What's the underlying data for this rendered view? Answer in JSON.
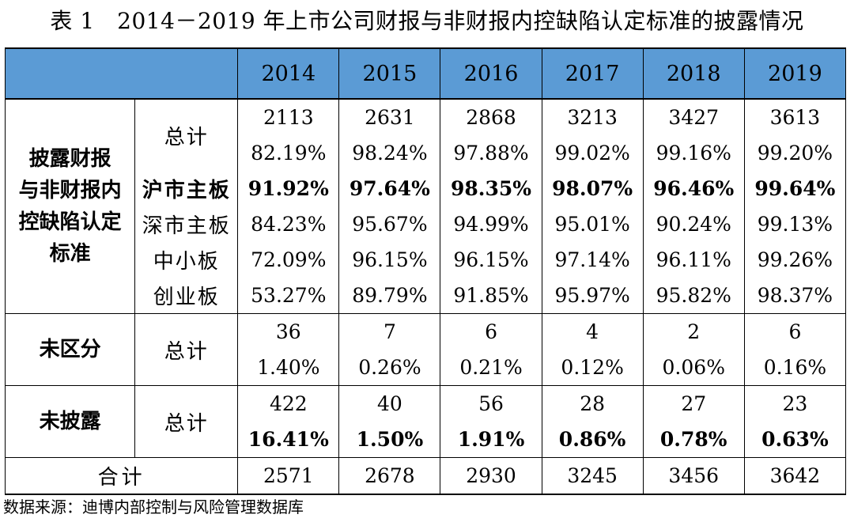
{
  "caption": "表 1　2014－2019 年上市公司财报与非财报内控缺陷认定标准的披露情况",
  "years": [
    "2014",
    "2015",
    "2016",
    "2017",
    "2018",
    "2019"
  ],
  "groups": {
    "disclosed": [
      "披露财报",
      "与非财报内",
      "控缺陷认定",
      "标准"
    ],
    "undistinguished": "未区分",
    "undisclosed": "未披露"
  },
  "labels": {
    "total": "总计",
    "sh_main": "沪市主板",
    "sz_main": "深市主板",
    "sme": "中小板",
    "gem": "创业板",
    "grand_total": "合计"
  },
  "rows": {
    "disclosed_count": [
      "2113",
      "2631",
      "2868",
      "3213",
      "3427",
      "3613"
    ],
    "disclosed_pct": [
      "82.19%",
      "98.24%",
      "97.88%",
      "99.02%",
      "99.16%",
      "99.20%"
    ],
    "sh_main": [
      "91.92%",
      "97.64%",
      "98.35%",
      "98.07%",
      "96.46%",
      "99.64%"
    ],
    "sz_main": [
      "84.23%",
      "95.67%",
      "94.99%",
      "95.01%",
      "90.24%",
      "99.13%"
    ],
    "sme": [
      "72.09%",
      "96.15%",
      "96.15%",
      "97.14%",
      "96.11%",
      "99.26%"
    ],
    "gem": [
      "53.27%",
      "89.79%",
      "91.85%",
      "95.97%",
      "95.82%",
      "98.37%"
    ],
    "undist_count": [
      "36",
      "7",
      "6",
      "4",
      "2",
      "6"
    ],
    "undist_pct": [
      "1.40%",
      "0.26%",
      "0.21%",
      "0.12%",
      "0.06%",
      "0.16%"
    ],
    "undisc_count": [
      "422",
      "40",
      "56",
      "28",
      "27",
      "23"
    ],
    "undisc_pct": [
      "16.41%",
      "1.50%",
      "1.91%",
      "0.86%",
      "0.78%",
      "0.63%"
    ],
    "grand_total": [
      "2571",
      "2678",
      "2930",
      "3245",
      "3456",
      "3642"
    ]
  },
  "source": "数据来源：迪博内部控制与风险管理数据库",
  "colors": {
    "header_bg": "#5b9bd5"
  }
}
